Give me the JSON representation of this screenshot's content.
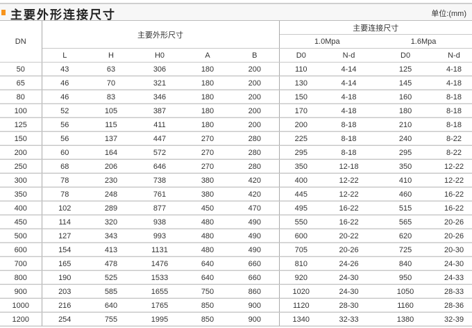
{
  "title": "主要外形连接尺寸",
  "unit": "单位:(mm)",
  "colors": {
    "accent": "#f7941d"
  },
  "header": {
    "dn": "DN",
    "group_outline": "主要外形尺寸",
    "group_connection": "主要连接尺寸",
    "pressure_1": "1.0Mpa",
    "pressure_2": "1.6Mpa",
    "columns": [
      "L",
      "H",
      "H0",
      "A",
      "B",
      "D0",
      "N-d",
      "D0",
      "N-d"
    ]
  },
  "rows": [
    [
      "50",
      "43",
      "63",
      "306",
      "180",
      "200",
      "110",
      "4-14",
      "125",
      "4-18"
    ],
    [
      "65",
      "46",
      "70",
      "321",
      "180",
      "200",
      "130",
      "4-14",
      "145",
      "4-18"
    ],
    [
      "80",
      "46",
      "83",
      "346",
      "180",
      "200",
      "150",
      "4-18",
      "160",
      "8-18"
    ],
    [
      "100",
      "52",
      "105",
      "387",
      "180",
      "200",
      "170",
      "4-18",
      "180",
      "8-18"
    ],
    [
      "125",
      "56",
      "115",
      "411",
      "180",
      "200",
      "200",
      "8-18",
      "210",
      "8-18"
    ],
    [
      "150",
      "56",
      "137",
      "447",
      "270",
      "280",
      "225",
      "8-18",
      "240",
      "8-22"
    ],
    [
      "200",
      "60",
      "164",
      "572",
      "270",
      "280",
      "295",
      "8-18",
      "295",
      "8-22"
    ],
    [
      "250",
      "68",
      "206",
      "646",
      "270",
      "280",
      "350",
      "12-18",
      "350",
      "12-22"
    ],
    [
      "300",
      "78",
      "230",
      "738",
      "380",
      "420",
      "400",
      "12-22",
      "410",
      "12-22"
    ],
    [
      "350",
      "78",
      "248",
      "761",
      "380",
      "420",
      "445",
      "12-22",
      "460",
      "16-22"
    ],
    [
      "400",
      "102",
      "289",
      "877",
      "450",
      "470",
      "495",
      "16-22",
      "515",
      "16-22"
    ],
    [
      "450",
      "114",
      "320",
      "938",
      "480",
      "490",
      "550",
      "16-22",
      "565",
      "20-26"
    ],
    [
      "500",
      "127",
      "343",
      "993",
      "480",
      "490",
      "600",
      "20-22",
      "620",
      "20-26"
    ],
    [
      "600",
      "154",
      "413",
      "1131",
      "480",
      "490",
      "705",
      "20-26",
      "725",
      "20-30"
    ],
    [
      "700",
      "165",
      "478",
      "1476",
      "640",
      "660",
      "810",
      "24-26",
      "840",
      "24-30"
    ],
    [
      "800",
      "190",
      "525",
      "1533",
      "640",
      "660",
      "920",
      "24-30",
      "950",
      "24-33"
    ],
    [
      "900",
      "203",
      "585",
      "1655",
      "750",
      "860",
      "1020",
      "24-30",
      "1050",
      "28-33"
    ],
    [
      "1000",
      "216",
      "640",
      "1765",
      "850",
      "900",
      "1120",
      "28-30",
      "1160",
      "28-36"
    ],
    [
      "1200",
      "254",
      "755",
      "1995",
      "850",
      "900",
      "1340",
      "32-33",
      "1380",
      "32-39"
    ]
  ]
}
